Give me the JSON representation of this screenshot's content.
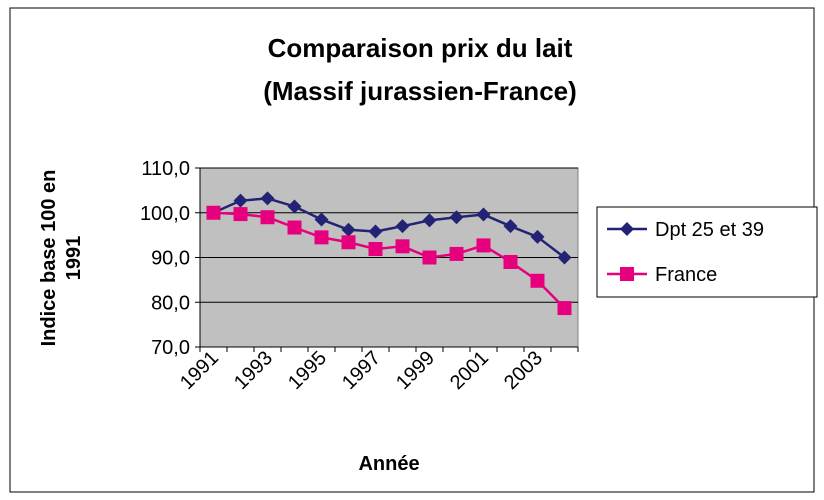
{
  "chart_data": {
    "type": "line",
    "title": [
      "Comparaison prix du lait",
      "(Massif jurassien-France)"
    ],
    "x_label": "Année",
    "y_label": [
      "Indice base 100 en",
      "1991"
    ],
    "categories": [
      "1991",
      null,
      "1993",
      null,
      "1995",
      null,
      "1997",
      null,
      "1999",
      null,
      "2001",
      null,
      "2003",
      null
    ],
    "series": [
      {
        "name": "Dpt 25 et 39",
        "color": "#232375",
        "marker": "diamond",
        "values": [
          100,
          102.7,
          103.2,
          101.4,
          98.5,
          96.2,
          95.8,
          97,
          98.3,
          99,
          99.6,
          97,
          94.6,
          90
        ]
      },
      {
        "name": "France",
        "color": "#e6007e",
        "marker": "square",
        "values": [
          100,
          99.7,
          99,
          96.7,
          94.5,
          93.4,
          91.9,
          92.5,
          90,
          90.8,
          92.7,
          89,
          84.8,
          78.7
        ]
      }
    ],
    "ylim": [
      70,
      110
    ],
    "yticks": [
      {
        "value": 70,
        "label": "70,0"
      },
      {
        "value": 80,
        "label": "80,0"
      },
      {
        "value": 90,
        "label": "90,0"
      },
      {
        "value": 100,
        "label": "100,0"
      },
      {
        "value": 110,
        "label": "110,0"
      }
    ],
    "grid": true,
    "legend": "right"
  }
}
